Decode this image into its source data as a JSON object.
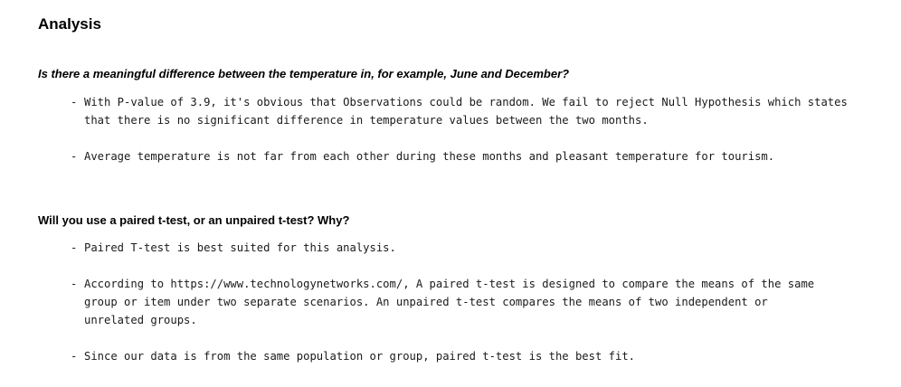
{
  "heading": "Analysis",
  "sections": [
    {
      "question": "Is there a meaningful difference between the temperature in, for example, June and December?",
      "bullets": [
        "With P-value of 3.9, it's obvious that Observations could be random. We fail to reject Null Hypothesis which states\nthat there is no significant difference in temperature values between the two months.",
        "Average temperature is not far from each other during these months and pleasant temperature for tourism."
      ]
    },
    {
      "question": "Will you use a paired t-test, or an unpaired t-test? Why?",
      "bullets": [
        "Paired T-test is best suited for this analysis.",
        "According to https://www.technologynetworks.com/, A paired t-test is designed to compare the means of the same\ngroup or item under two separate scenarios. An unpaired t-test compares the means of two independent or\nunrelated groups.",
        "Since our data is from the same population or group, paired t-test is the best fit."
      ]
    }
  ],
  "bullet_marker": "-"
}
